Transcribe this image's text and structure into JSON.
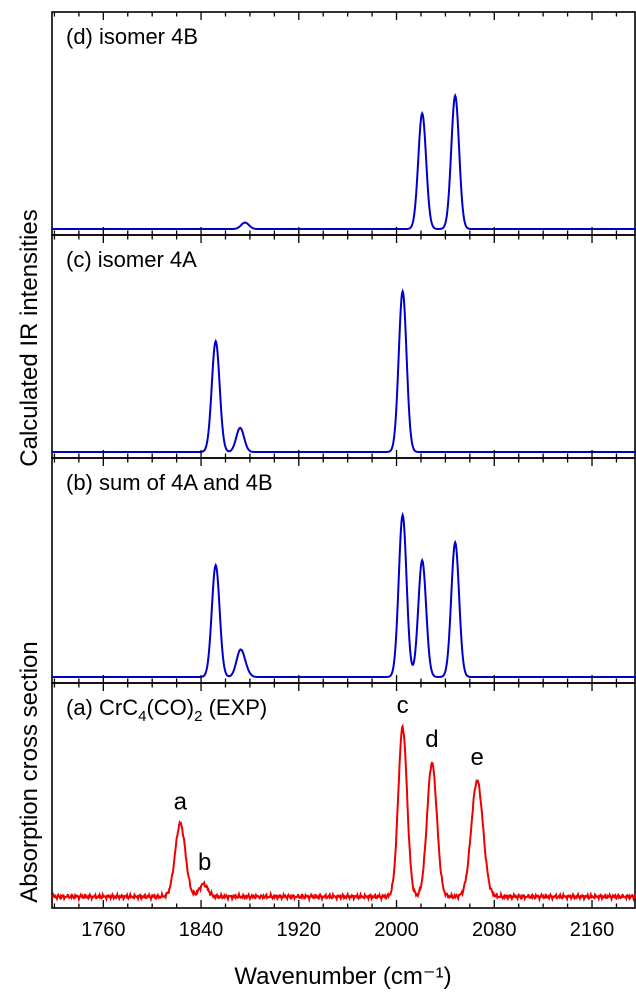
{
  "chart_data": {
    "type": "line",
    "xlabel": "Wavenumber (cm⁻¹)",
    "ylabel_top": "Calculated IR intensities",
    "ylabel_bottom": "Absorption cross section",
    "xlim": [
      1718,
      2196
    ],
    "xticks": [
      1760,
      1840,
      1920,
      2000,
      2080,
      2160
    ],
    "xtick_labels": [
      "1760",
      "1840",
      "1920",
      "2000",
      "2080",
      "2160"
    ],
    "minor_tick_step": 20,
    "peak_width_sigma": 3.2,
    "panels": [
      {
        "id": "d",
        "label": "(d) isomer 4B",
        "color": "#0000cc",
        "peaks": [
          {
            "x": 1876,
            "y": 0.04
          },
          {
            "x": 2021,
            "y": 0.72
          },
          {
            "x": 2048,
            "y": 0.83
          }
        ]
      },
      {
        "id": "c",
        "label": "(c) isomer 4A",
        "color": "#0000cc",
        "peaks": [
          {
            "x": 1852,
            "y": 0.69
          },
          {
            "x": 1872,
            "y": 0.15
          },
          {
            "x": 2005,
            "y": 1.0
          }
        ]
      },
      {
        "id": "b",
        "label": "(b) sum of 4A and 4B",
        "color": "#0000cc",
        "peaks": [
          {
            "x": 1852,
            "y": 0.69
          },
          {
            "x": 1872,
            "y": 0.15
          },
          {
            "x": 1876,
            "y": 0.04
          },
          {
            "x": 2005,
            "y": 1.0
          },
          {
            "x": 2021,
            "y": 0.72
          },
          {
            "x": 2048,
            "y": 0.83
          }
        ]
      },
      {
        "id": "a",
        "label_prefix": "(a) CrC",
        "label_sub1": "4",
        "label_mid": "(CO)",
        "label_sub2": "2",
        "label_suffix": " (EXP)",
        "color": "#ee0000",
        "baseline": 0.03,
        "peaks": [
          {
            "x": 1823,
            "y": 0.41,
            "w": 4.2
          },
          {
            "x": 1842,
            "y": 0.07,
            "w": 3.5
          },
          {
            "x": 2005,
            "y": 0.95,
            "w": 3.6
          },
          {
            "x": 2029,
            "y": 0.75,
            "w": 4.0
          },
          {
            "x": 2066,
            "y": 0.65,
            "w": 4.8
          }
        ],
        "peak_labels": [
          {
            "text": "a",
            "x": 1823,
            "y": 0.52
          },
          {
            "text": "b",
            "x": 1843,
            "y": 0.18
          },
          {
            "text": "c",
            "x": 2005,
            "y": 1.06
          },
          {
            "text": "d",
            "x": 2029,
            "y": 0.87
          },
          {
            "text": "e",
            "x": 2066,
            "y": 0.77
          }
        ]
      }
    ]
  }
}
